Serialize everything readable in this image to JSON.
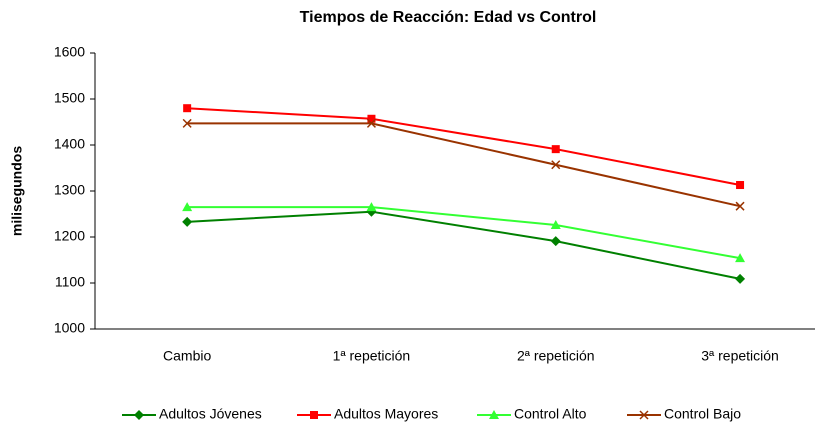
{
  "chart_data": {
    "type": "line",
    "title": "Tiempos de Reacción: Edad vs Control",
    "y_label": "milisegundos",
    "categories": [
      "Cambio",
      "1ª repetición",
      "2ª repetición",
      "3ª repetición"
    ],
    "series": [
      {
        "name": "Adultos Jóvenes",
        "color": "#008000",
        "marker": "diamond",
        "values": [
          1233,
          1255,
          1191,
          1109
        ]
      },
      {
        "name": "Adultos Mayores",
        "color": "#ff0000",
        "marker": "square",
        "values": [
          1480,
          1457,
          1391,
          1313
        ]
      },
      {
        "name": "Control Alto",
        "color": "#33ff33",
        "marker": "triangle",
        "values": [
          1265,
          1265,
          1226,
          1154
        ]
      },
      {
        "name": "Control Bajo",
        "color": "#993300",
        "marker": "x",
        "values": [
          1447,
          1447,
          1357,
          1267
        ]
      }
    ],
    "ylim": [
      1000,
      1600
    ],
    "yticks": [
      1000,
      1100,
      1200,
      1300,
      1400,
      1500,
      1600
    ],
    "legend": "bottom"
  }
}
